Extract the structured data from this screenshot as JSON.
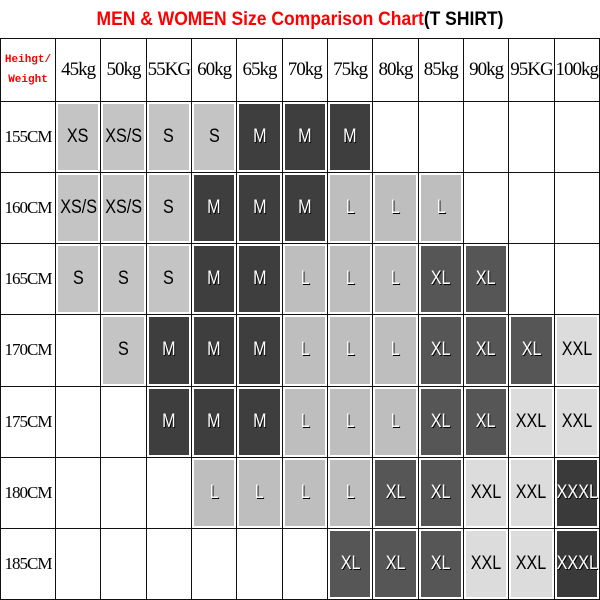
{
  "title": {
    "main": "MEN & WOMEN Size Comparison Chart",
    "suffix": "(T SHIRT)"
  },
  "colors": {
    "title": "#ff0000",
    "XS": "#c4c4c4",
    "XS/S": "#c4c4c4",
    "S": "#c4c4c4",
    "M": "#3e3e3e",
    "L": "#bebebe",
    "XL": "#565656",
    "XXL": "#dcdcdc",
    "XXXL": "#3a3a3a"
  },
  "chart_data": {
    "type": "table",
    "corner": [
      "Heihgt/",
      "Weight"
    ],
    "columns": [
      "45kg",
      "50kg",
      "55KG",
      "60kg",
      "65kg",
      "70kg",
      "75kg",
      "80kg",
      "85kg",
      "90kg",
      "95KG",
      "100kg"
    ],
    "rows": [
      {
        "label": "155CM",
        "cells": [
          "XS",
          "XS/S",
          "S",
          "S",
          "M",
          "M",
          "M",
          "",
          "",
          "",
          "",
          ""
        ]
      },
      {
        "label": "160CM",
        "cells": [
          "XS/S",
          "XS/S",
          "S",
          "M",
          "M",
          "M",
          "L",
          "L",
          "L",
          "",
          "",
          ""
        ]
      },
      {
        "label": "165CM",
        "cells": [
          "S",
          "S",
          "S",
          "M",
          "M",
          "L",
          "L",
          "L",
          "XL",
          "XL",
          "",
          ""
        ]
      },
      {
        "label": "170CM",
        "cells": [
          "",
          "S",
          "M",
          "M",
          "M",
          "L",
          "L",
          "L",
          "XL",
          "XL",
          "XL",
          "XXL"
        ]
      },
      {
        "label": "175CM",
        "cells": [
          "",
          "",
          "M",
          "M",
          "M",
          "L",
          "L",
          "L",
          "XL",
          "XL",
          "XXL",
          "XXL"
        ]
      },
      {
        "label": "180CM",
        "cells": [
          "",
          "",
          "",
          "L",
          "L",
          "L",
          "L",
          "XL",
          "XL",
          "XXL",
          "XXL",
          "XXXL"
        ]
      },
      {
        "label": "185CM",
        "cells": [
          "",
          "",
          "",
          "",
          "",
          "",
          "XL",
          "XL",
          "XL",
          "XXL",
          "XXL",
          "XXXL"
        ]
      }
    ]
  }
}
